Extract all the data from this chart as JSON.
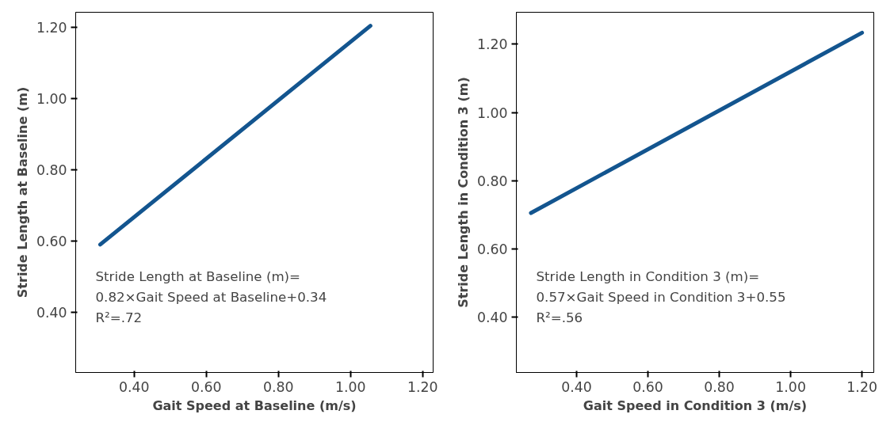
{
  "chart_data": [
    {
      "type": "line",
      "xlabel": "Gait Speed at Baseline (m/s)",
      "ylabel": "Stride Length at Baseline (m)",
      "x": [
        0.306,
        1.055
      ],
      "series": [
        {
          "color": "#13558f",
          "values": [
            0.591,
            1.205
          ]
        }
      ],
      "xlim": [
        0.238,
        1.229
      ],
      "ylim": [
        0.232,
        1.243
      ],
      "xticks": [
        {
          "value": 0.4,
          "label": "0.40"
        },
        {
          "value": 0.6,
          "label": "0.60"
        },
        {
          "value": 0.8,
          "label": "0.80"
        },
        {
          "value": 1.0,
          "label": "1.00"
        },
        {
          "value": 1.2,
          "label": "1.20"
        }
      ],
      "yticks": [
        {
          "value": 0.4,
          "label": "0.40"
        },
        {
          "value": 0.6,
          "label": "0.60"
        },
        {
          "value": 0.8,
          "label": "0.80"
        },
        {
          "value": 1.0,
          "label": "1.00"
        },
        {
          "value": 1.2,
          "label": "1.20"
        }
      ],
      "annotations": [
        "Stride Length at Baseline (m)=",
        "0.82×Gait Speed at Baseline+0.34",
        "R²=.72"
      ],
      "grid": false,
      "marker": "none",
      "line_style": "solid"
    },
    {
      "type": "line",
      "xlabel": "Gait Speed in Condition 3 (m/s)",
      "ylabel": "Stride Length in Condition 3 (m)",
      "x": [
        0.272,
        1.2
      ],
      "series": [
        {
          "color": "#13558f",
          "values": [
            0.705,
            1.234
          ]
        }
      ],
      "xlim": [
        0.231,
        1.233
      ],
      "ylim": [
        0.237,
        1.294
      ],
      "xticks": [
        {
          "value": 0.4,
          "label": "0.40"
        },
        {
          "value": 0.6,
          "label": "0.60"
        },
        {
          "value": 0.8,
          "label": "0.80"
        },
        {
          "value": 1.0,
          "label": "1.00"
        },
        {
          "value": 1.2,
          "label": "1.20"
        }
      ],
      "yticks": [
        {
          "value": 0.4,
          "label": "0.40"
        },
        {
          "value": 0.6,
          "label": "0.60"
        },
        {
          "value": 0.8,
          "label": "0.80"
        },
        {
          "value": 1.0,
          "label": "1.00"
        },
        {
          "value": 1.2,
          "label": "1.20"
        }
      ],
      "annotations": [
        "Stride Length in Condition 3 (m)=",
        "0.57×Gait Speed in Condition 3+0.55",
        "R²=.56"
      ],
      "grid": false,
      "marker": "none",
      "line_style": "solid"
    }
  ]
}
